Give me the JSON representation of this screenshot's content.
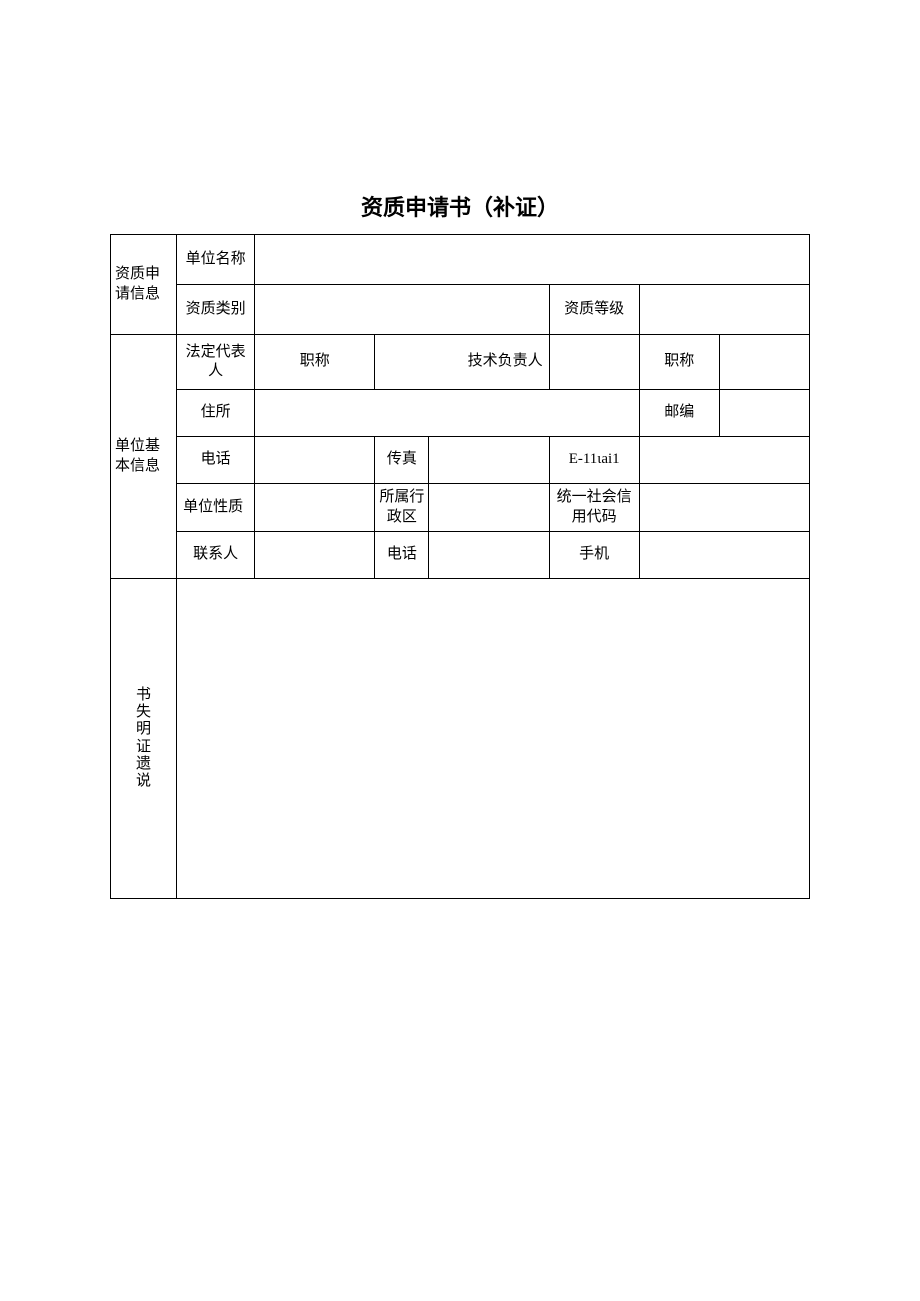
{
  "title": "资质申请书（补证）",
  "sections": {
    "app_info": "资质申请信息",
    "basic_info": "单位基本信息",
    "lost_cert": "书失明证遗说"
  },
  "labels": {
    "unit_name": "单位名称",
    "qual_category": "资质类别",
    "qual_level": "资质等级",
    "legal_rep": "法定代表人",
    "title1": "职称",
    "tech_lead": "技术负责人",
    "title2": "职称",
    "address": "住所",
    "postcode": "邮编",
    "phone": "电话",
    "fax": "传真",
    "email": "E-11ιai1",
    "unit_nature": "单位性质",
    "admin_region": "所属行政区",
    "social_code": "统一社会信用代码",
    "contact": "联系人",
    "contact_phone": "电话",
    "mobile": "手机"
  },
  "values": {
    "unit_name": "",
    "qual_category": "",
    "qual_level": "",
    "legal_rep": "",
    "title1": "",
    "tech_lead": "",
    "tech_lead_val": "",
    "title2": "",
    "address": "",
    "postcode": "",
    "phone": "",
    "fax": "",
    "email": "",
    "unit_nature": "",
    "admin_region": "",
    "social_code": "",
    "contact": "",
    "contact_phone": "",
    "mobile": "",
    "lost_cert_desc": ""
  }
}
